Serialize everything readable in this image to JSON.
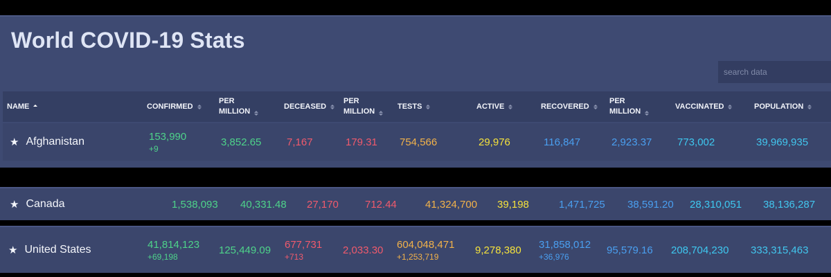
{
  "page": {
    "title": "World COVID-19 Stats",
    "search_placeholder": "search data"
  },
  "colors": {
    "confirmed": "#4ed38a",
    "deceased": "#f05a6c",
    "tests": "#f2b24a",
    "active": "#f5e23c",
    "recovered": "#4a9ff0",
    "vaccinated": "#3ec8f0",
    "population": "#42c6ee"
  },
  "table": {
    "sort_column": "name",
    "sort_direction": "ascending",
    "columns": [
      {
        "key": "name",
        "label": "NAME"
      },
      {
        "key": "confirmed",
        "label": "CONFIRMED"
      },
      {
        "key": "confirmed_per_million",
        "label": "PER\nMILLION"
      },
      {
        "key": "deceased",
        "label": "DECEASED"
      },
      {
        "key": "deceased_per_million",
        "label": "PER\nMILLION"
      },
      {
        "key": "tests",
        "label": "TESTS"
      },
      {
        "key": "active",
        "label": "ACTIVE"
      },
      {
        "key": "recovered",
        "label": "RECOVERED"
      },
      {
        "key": "recovered_per_million",
        "label": "PER\nMILLION"
      },
      {
        "key": "vaccinated",
        "label": "VACCINATED"
      },
      {
        "key": "population",
        "label": "POPULATION"
      }
    ],
    "rows": [
      {
        "star_icon": "star-icon",
        "name": "Afghanistan",
        "confirmed": "153,990",
        "confirmed_delta": "+9",
        "confirmed_per_million": "3,852.65",
        "deceased": "7,167",
        "deceased_per_million": "179.31",
        "tests": "754,566",
        "active": "29,976",
        "recovered": "116,847",
        "recovered_per_million": "2,923.37",
        "vaccinated": "773,002",
        "population": "39,969,935"
      },
      {
        "star_icon": "star-icon",
        "name": "Canada",
        "confirmed": "1,538,093",
        "confirmed_per_million": "40,331.48",
        "deceased": "27,170",
        "deceased_per_million": "712.44",
        "tests": "41,324,700",
        "active": "39,198",
        "recovered": "1,471,725",
        "recovered_per_million": "38,591.20",
        "vaccinated": "28,310,051",
        "population": "38,136,287"
      },
      {
        "star_icon": "star-icon",
        "name": "United States",
        "confirmed": "41,814,123",
        "confirmed_delta": "+69,198",
        "confirmed_per_million": "125,449.09",
        "deceased": "677,731",
        "deceased_delta": "+713",
        "deceased_per_million": "2,033.30",
        "tests": "604,048,471",
        "tests_delta": "+1,253,719",
        "active": "9,278,380",
        "recovered": "31,858,012",
        "recovered_delta": "+36,976",
        "recovered_per_million": "95,579.16",
        "vaccinated": "208,704,230",
        "population": "333,315,463"
      }
    ]
  }
}
